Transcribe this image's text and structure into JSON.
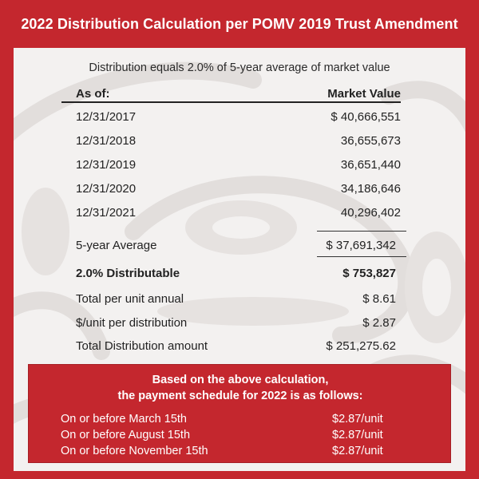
{
  "title": "2022 Distribution Calculation per POMV 2019 Trust Amendment",
  "subtitle": "Distribution equals 2.0% of 5-year average of market value",
  "table": {
    "col_asof": "As of:",
    "col_value": "Market Value",
    "rows": [
      {
        "date": "12/31/2017",
        "value": "$ 40,666,551"
      },
      {
        "date": "12/31/2018",
        "value": "36,655,673"
      },
      {
        "date": "12/31/2019",
        "value": "36,651,440"
      },
      {
        "date": "12/31/2020",
        "value": "34,186,646"
      },
      {
        "date": "12/31/2021",
        "value": "40,296,402"
      }
    ]
  },
  "summary": {
    "avg_label": "5-year Average",
    "avg_value": "$ 37,691,342",
    "distributable_label": "2.0% Distributable",
    "distributable_value": "$ 753,827",
    "per_unit_label": "Total per unit annual",
    "per_unit_value": "$ 8.61",
    "per_dist_label": "$/unit per distribution",
    "per_dist_value": "$ 2.87",
    "total_label": "Total Distribution amount",
    "total_value": "$ 251,275.62"
  },
  "callout": {
    "heading_line1": "Based on the above calculation,",
    "heading_line2": "the payment schedule for 2022 is as follows:",
    "schedule": [
      {
        "when": "On or before March 15th",
        "amount": "$2.87/unit"
      },
      {
        "when": "On or before August 15th",
        "amount": "$2.87/unit"
      },
      {
        "when": "On or before November 15th",
        "amount": "$2.87/unit"
      }
    ]
  },
  "colors": {
    "brand_red": "#c4272e",
    "panel_bg": "#f3f1f0",
    "watermark": "#e3dfdd",
    "text": "#222222"
  }
}
